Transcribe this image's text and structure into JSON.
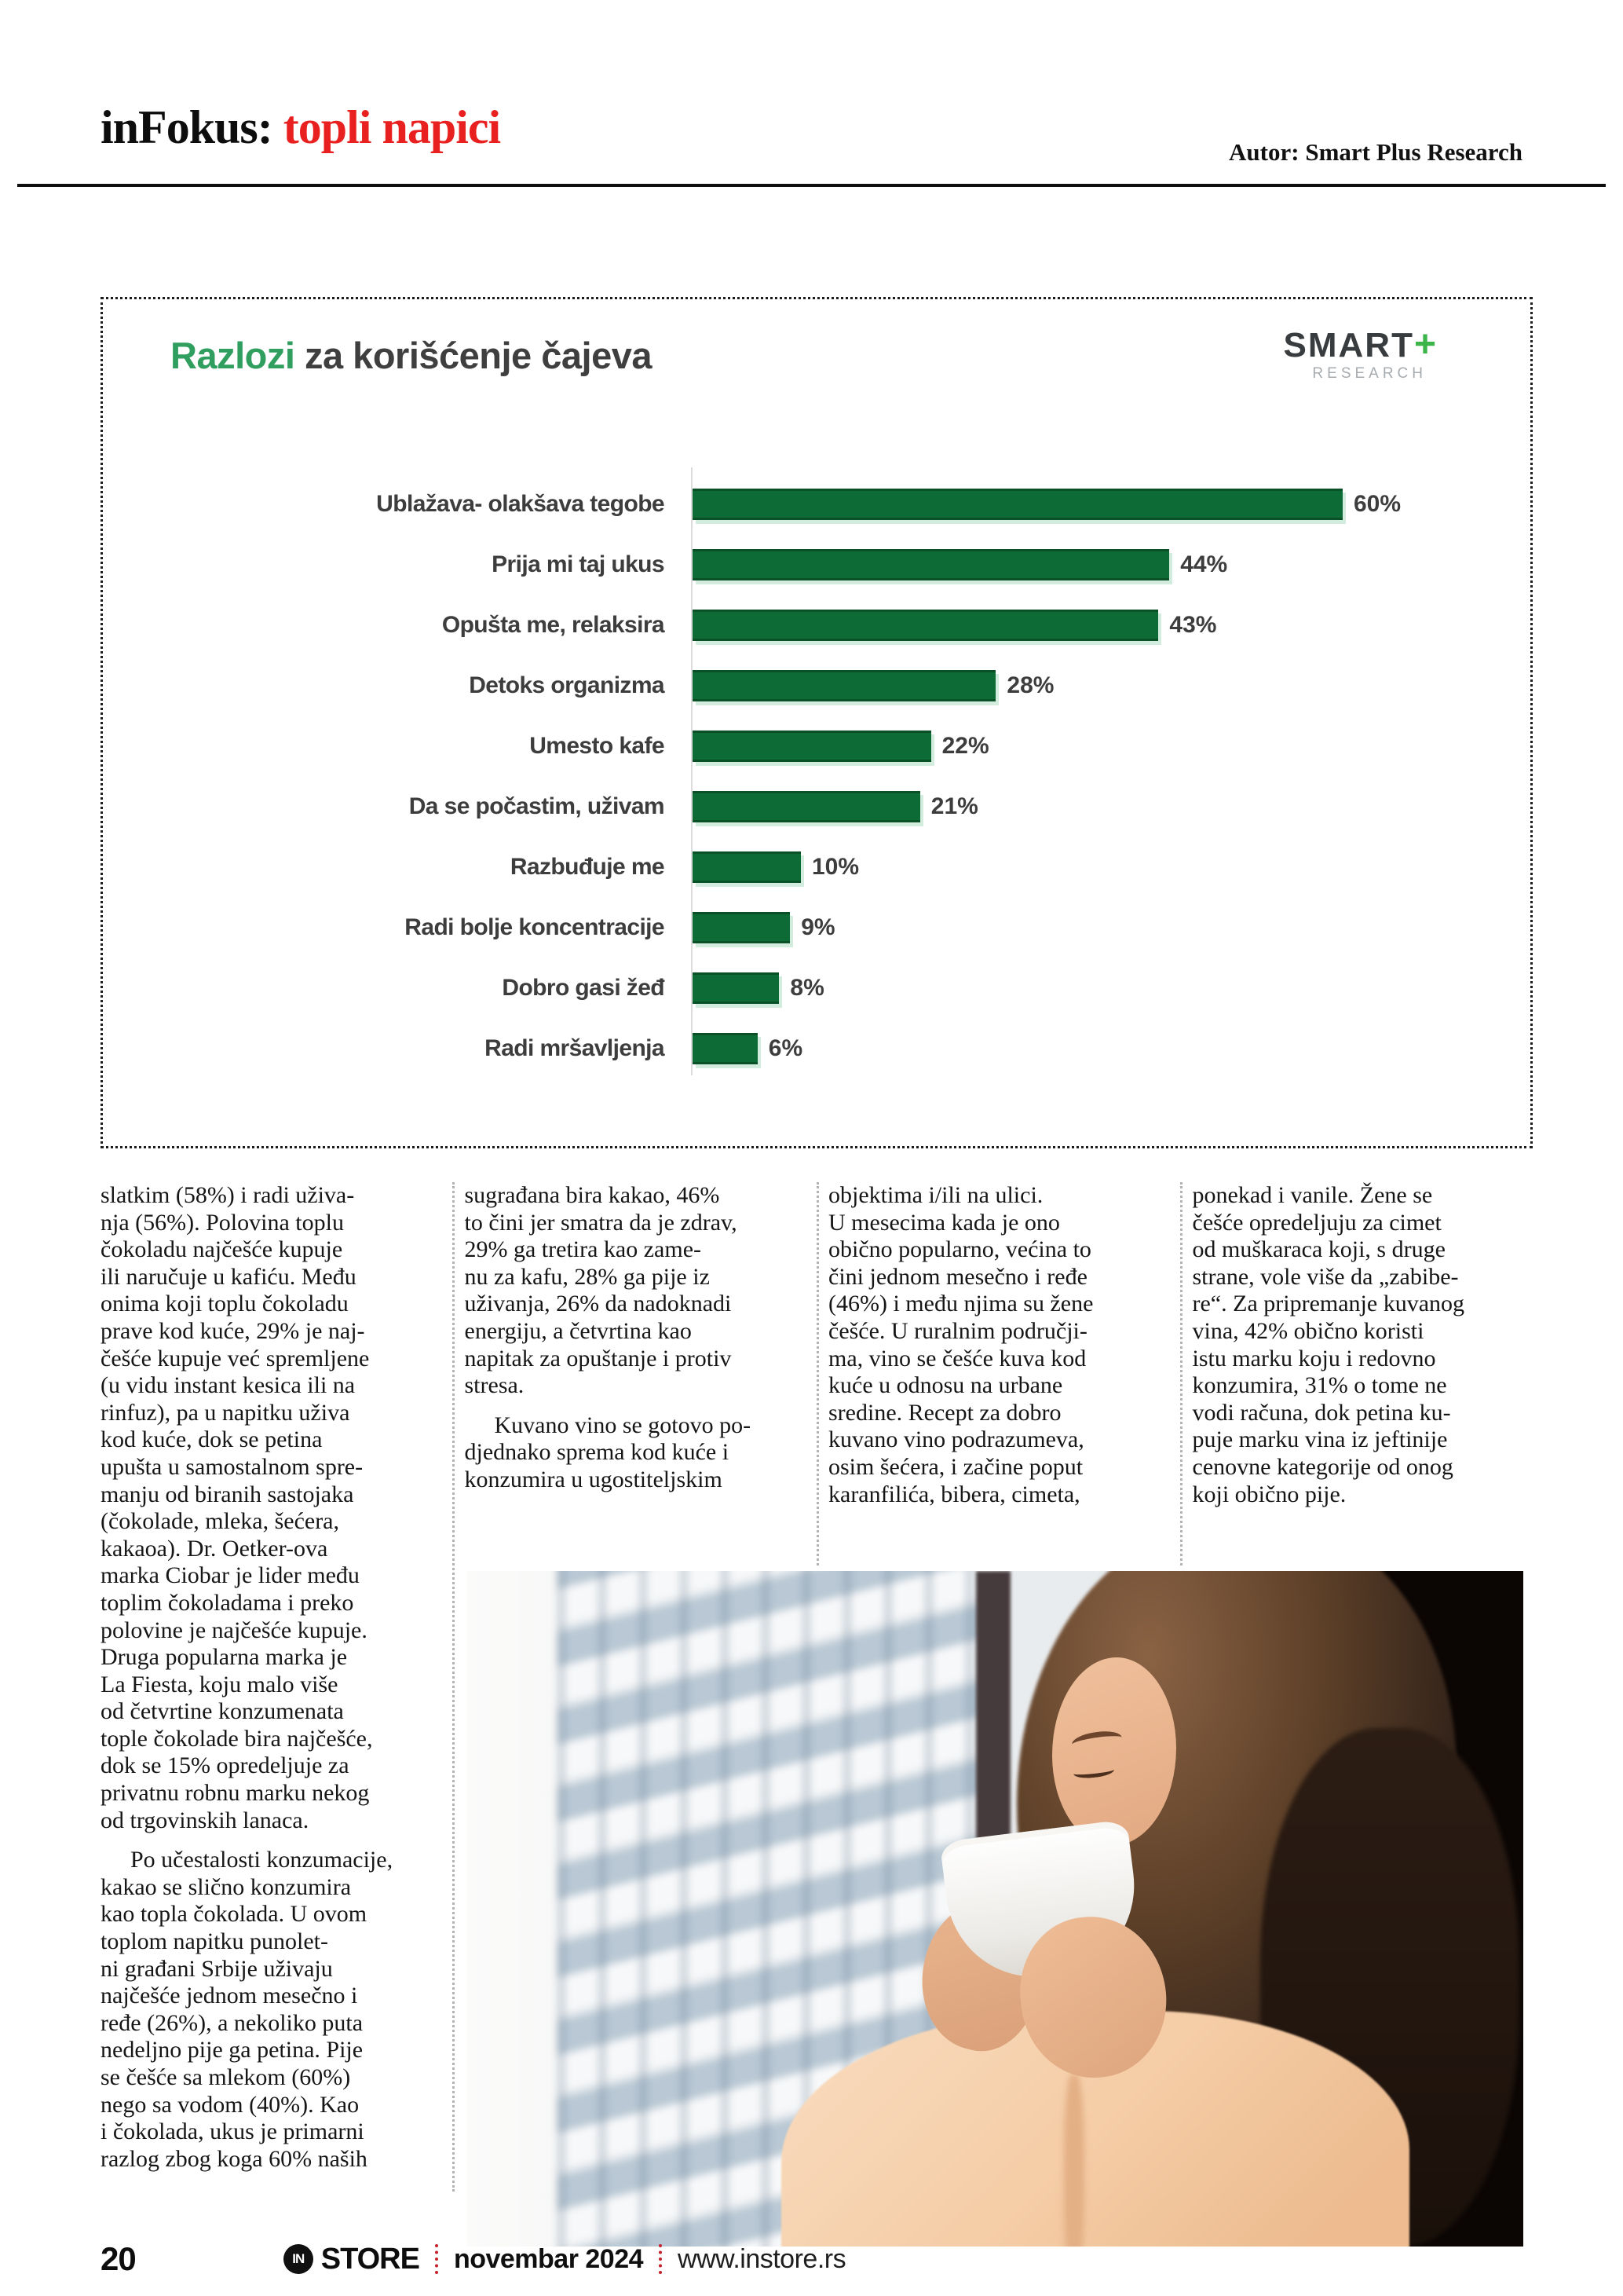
{
  "header": {
    "brand": "inFokus:",
    "topic": " topli napici",
    "author": "Autor: Smart Plus Research"
  },
  "chart_data": {
    "type": "bar",
    "orientation": "horizontal",
    "title_highlight": "Razlozi",
    "title_rest": " za korišćenje čajeva",
    "categories": [
      "Ublažava- olakšava tegobe",
      "Prija mi taj ukus",
      "Opušta me, relaksira",
      "Detoks organizma",
      "Umesto kafe",
      "Da se počastim, uživam",
      "Razbuđuje me",
      "Radi bolje koncentracije",
      "Dobro gasi žeđ",
      "Radi mršavljenja"
    ],
    "values": [
      60,
      44,
      43,
      28,
      22,
      21,
      10,
      9,
      8,
      6
    ],
    "labels": [
      "60%",
      "44%",
      "43%",
      "28%",
      "22%",
      "21%",
      "10%",
      "9%",
      "8%",
      "6%"
    ],
    "xlim": [
      0,
      60
    ],
    "grid": "off",
    "legend": "none",
    "bar_color": "#0d6b35",
    "source_logo": {
      "smart": "SMART",
      "plus": "+",
      "research": "RESEARCH"
    }
  },
  "columns": {
    "col1_p1": "slatkim (58%) i radi uživa-\nnja (56%). Polovina toplu\nčokoladu najčešće kupuje\nili naručuje u kafiću. Među\nonima koji toplu čokoladu\nprave kod kuće, 29% je naj-\nčešće kupuje već spremljene\n(u vidu instant kesica ili na\nrinfuz), pa u napitku uživa\nkod kuće, dok se petina\nupušta u samostalnom spre-\nmanju od biranih sastojaka\n(čokolade, mleka, šećera,\nkakaoa). Dr. Oetker-ova\nmarka Ciobar je lider među\ntoplim čokoladama i preko\npolovine je najčešće kupuje.\nDruga popularna marka je\nLa Fiesta, koju malo više\nod četvrtine konzumenata\ntople čokolade bira najčešće,\ndok se 15% opredeljuje za\nprivatnu robnu marku nekog\nod trgovinskih lanaca.",
    "col1_p2": "Po učestalosti konzumacije,\nkakao se slično konzumira\nkao topla čokolada. U ovom\ntoplom napitku punolet-\nni građani Srbije uživaju\nnajčešće jednom mesečno i\nređe (26%), a nekoliko puta\nnedeljno pije ga petina. Pije\nse češće sa mlekom (60%)\nnego sa vodom (40%). Kao\ni čokolada, ukus je primarni\nrazlog zbog koga 60% naših",
    "col2_p1": "sugrađana bira kakao, 46%\nto čini jer smatra da je zdrav,\n29% ga tretira kao zame-\nnu za kafu, 28% ga pije iz\nuživanja, 26% da nadoknadi\nenergiju, a četvrtina kao\nnapitak za opuštanje i protiv\nstresa.",
    "col2_p2": "Kuvano vino se gotovo po-\ndjednako sprema kod kuće i\nkonzumira u ugostiteljskim",
    "col3_p1": "objektima i/ili na ulici.\nU mesecima kada je ono\nobično popularno, većina to\nčini jednom mesečno i ređe\n(46%) i među njima su žene\nčešće. U ruralnim područji-\nma, vino se češće kuva kod\nkuće u odnosu na urbane\nsredine. Recept za dobro\nkuvano vino podrazumeva,\nosim šećera, i začine poput\nkaranfilića, bibera, cimeta,",
    "col4_p1": "ponekad i vanile. Žene se\nčešće opredeljuju za cimet\nod muškaraca koji, s druge\nstrane, vole više da „zabibe-\nre“. Za pripremanje kuvanog\nvina, 42% obično koristi\nistu marku koju i redovno\nkonzumira, 31% o tome ne\nvodi računa, dok petina ku-\npuje marku vina iz jeftinije\ncenovne kategorije od onog\nkoji obično pije."
  },
  "footer": {
    "page_number": "20",
    "logo_circle": "IN",
    "logo_store": "STORE",
    "issue": "novembar 2024",
    "website": "www.instore.rs"
  },
  "colors": {
    "accent_red": "#e8201f",
    "bar_green": "#0d6b35",
    "title_green": "#2f9e5f",
    "logo_plus_green": "#3bb54a",
    "footer_sep_red": "#c4232b"
  }
}
